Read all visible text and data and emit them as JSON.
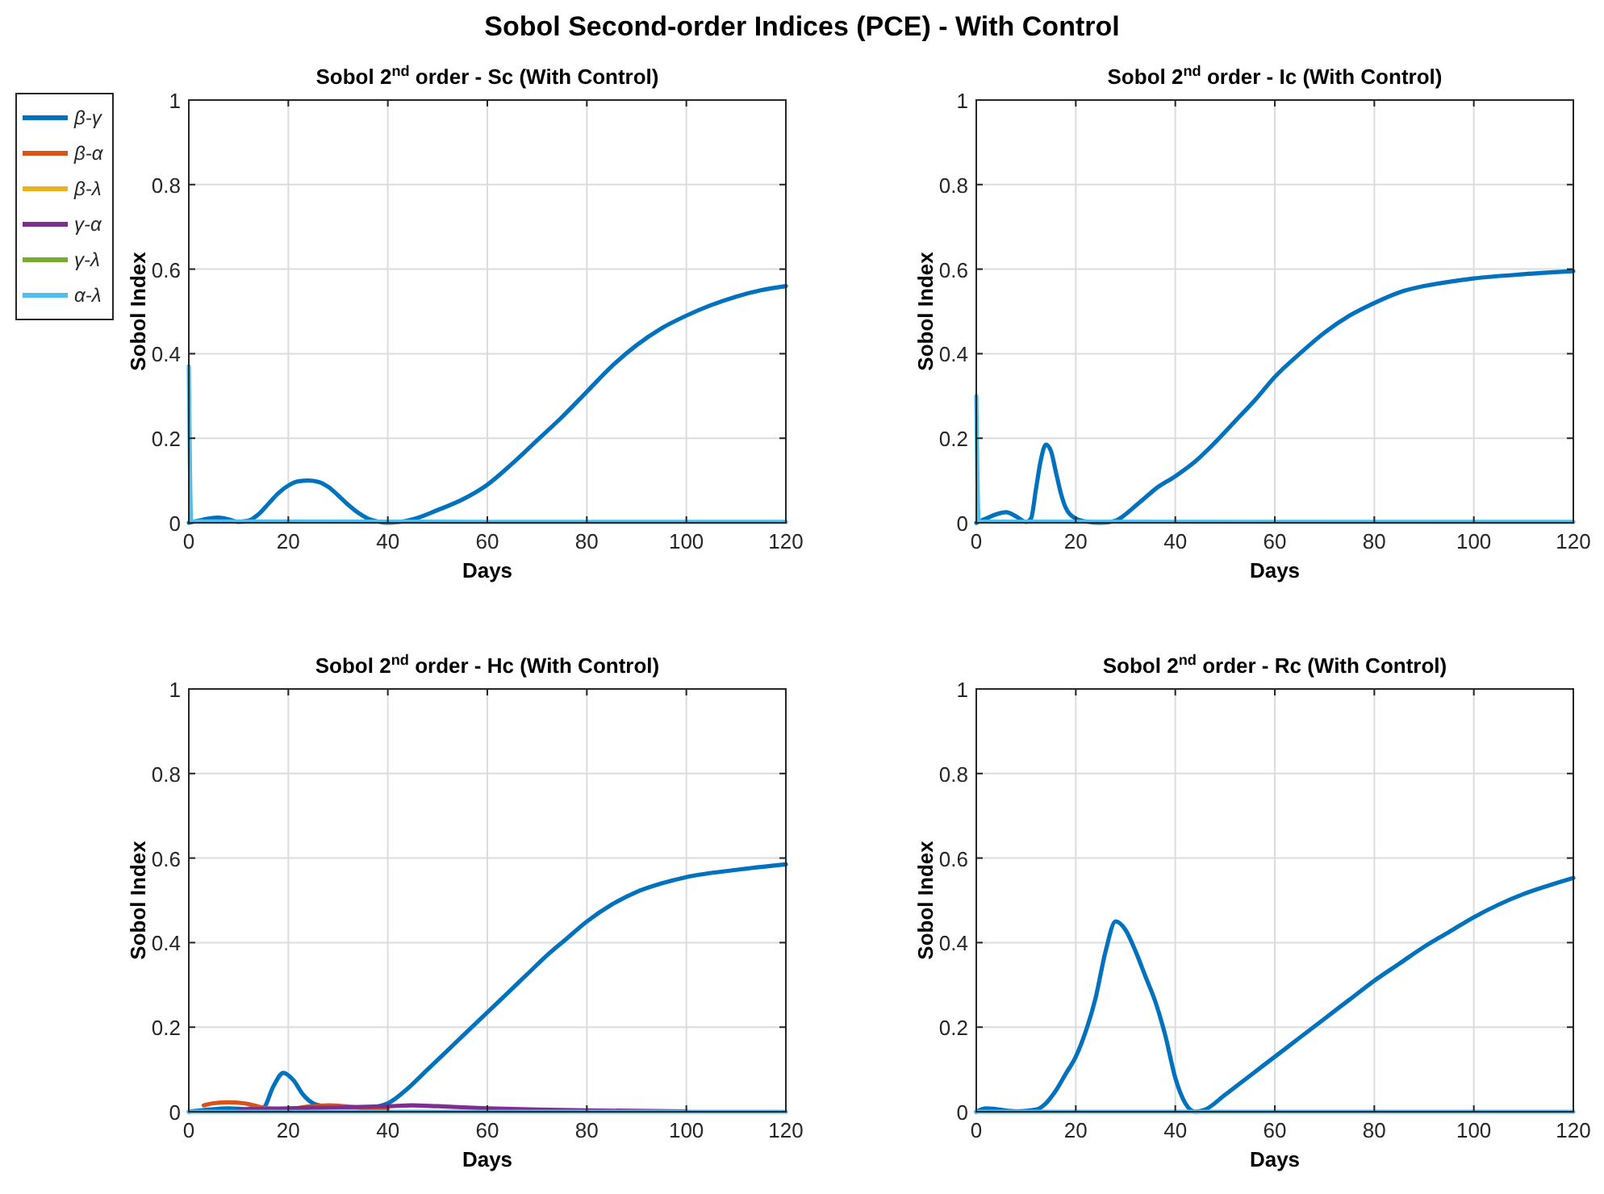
{
  "chart_data": [
    {
      "type": "other",
      "title": "Sobol Second-order Indices (PCE) - With Control"
    },
    {
      "type": "line",
      "title": "Sobol 2$^{nd}$ order - Sc (With Control)",
      "xlabel": "Days",
      "ylabel": "Sobol Index",
      "xlim": [
        0,
        120
      ],
      "ylim": [
        0,
        1
      ],
      "xticks": [
        0,
        20,
        40,
        60,
        80,
        100,
        120
      ],
      "yticks": [
        0,
        0.2,
        0.4,
        0.6,
        0.8,
        1
      ],
      "grid": true,
      "legend": "left",
      "series": [
        {
          "name": "β-γ",
          "color": "#0072bd",
          "x": [
            0,
            2,
            4,
            6,
            8,
            10,
            12,
            14,
            16,
            18,
            20,
            22,
            24,
            26,
            28,
            30,
            32,
            34,
            36,
            38,
            40,
            45,
            50,
            55,
            60,
            65,
            70,
            75,
            80,
            85,
            90,
            95,
            100,
            105,
            110,
            115,
            120
          ],
          "values": [
            0,
            0.005,
            0.01,
            0.012,
            0.008,
            0.002,
            0.005,
            0.02,
            0.045,
            0.07,
            0.088,
            0.098,
            0.1,
            0.097,
            0.085,
            0.065,
            0.043,
            0.024,
            0.01,
            0.003,
            0,
            0.008,
            0.03,
            0.055,
            0.09,
            0.14,
            0.195,
            0.25,
            0.31,
            0.37,
            0.42,
            0.46,
            0.49,
            0.515,
            0.535,
            0.55,
            0.56
          ]
        },
        {
          "name": "β-α",
          "color": "#d95319"
        },
        {
          "name": "β-λ",
          "color": "#edb120"
        },
        {
          "name": "γ-α",
          "color": "#7e2f8e"
        },
        {
          "name": "γ-λ",
          "color": "#77ac30"
        },
        {
          "name": "α-λ",
          "color": "#4dbeee",
          "x": [
            0,
            0.5,
            120
          ],
          "values": [
            0.37,
            0.003,
            0.002
          ]
        }
      ]
    },
    {
      "type": "line",
      "title": "Sobol 2$^{nd}$ order - Ic (With Control)",
      "xlabel": "Days",
      "ylabel": "Sobol Index",
      "xlim": [
        0,
        120
      ],
      "ylim": [
        0,
        1
      ],
      "xticks": [
        0,
        20,
        40,
        60,
        80,
        100,
        120
      ],
      "yticks": [
        0,
        0.2,
        0.4,
        0.6,
        0.8,
        1
      ],
      "grid": true,
      "series": [
        {
          "color": "#0072bd",
          "x": [
            0,
            2,
            4,
            6,
            8,
            10,
            11,
            12,
            13,
            14,
            15,
            16,
            17,
            18,
            20,
            22,
            25,
            28,
            30,
            32,
            34,
            36,
            40,
            44,
            48,
            52,
            56,
            60,
            65,
            70,
            75,
            80,
            85,
            90,
            95,
            100,
            110,
            120
          ],
          "values": [
            0,
            0.01,
            0.02,
            0.025,
            0.015,
            0.002,
            0.01,
            0.08,
            0.15,
            0.185,
            0.17,
            0.12,
            0.07,
            0.035,
            0.01,
            0.003,
            0,
            0.005,
            0.02,
            0.04,
            0.06,
            0.08,
            0.11,
            0.145,
            0.19,
            0.24,
            0.29,
            0.345,
            0.4,
            0.45,
            0.49,
            0.52,
            0.545,
            0.56,
            0.57,
            0.578,
            0.588,
            0.595
          ]
        },
        {
          "color": "#4dbeee",
          "x": [
            0,
            0.5,
            120
          ],
          "values": [
            0.3,
            0.003,
            0.002
          ]
        }
      ]
    },
    {
      "type": "line",
      "title": "Sobol 2$^{nd}$ order - Hc (With Control)",
      "xlabel": "Days",
      "ylabel": "Sobol Index",
      "xlim": [
        0,
        120
      ],
      "ylim": [
        0,
        1
      ],
      "xticks": [
        0,
        20,
        40,
        60,
        80,
        100,
        120
      ],
      "yticks": [
        0,
        0.2,
        0.4,
        0.6,
        0.8,
        1
      ],
      "grid": true,
      "series": [
        {
          "color": "#0072bd",
          "x": [
            0,
            4,
            8,
            12,
            15,
            17,
            19,
            21,
            23,
            25,
            28,
            32,
            36,
            40,
            44,
            48,
            52,
            56,
            60,
            64,
            68,
            72,
            76,
            80,
            85,
            90,
            95,
            100,
            110,
            120
          ],
          "values": [
            0,
            0.005,
            0.008,
            0.006,
            0.01,
            0.06,
            0.092,
            0.075,
            0.04,
            0.02,
            0.012,
            0.01,
            0.01,
            0.02,
            0.055,
            0.1,
            0.145,
            0.19,
            0.235,
            0.28,
            0.325,
            0.37,
            0.41,
            0.45,
            0.49,
            0.52,
            0.54,
            0.555,
            0.572,
            0.585
          ]
        },
        {
          "color": "#d95319",
          "x": [
            3,
            5,
            8,
            11,
            13,
            16,
            20,
            24,
            28,
            32,
            36,
            40
          ],
          "values": [
            0.015,
            0.02,
            0.022,
            0.02,
            0.015,
            0.008,
            0.006,
            0.012,
            0.015,
            0.012,
            0.008,
            0.006
          ]
        },
        {
          "color": "#7e2f8e",
          "x": [
            10,
            20,
            30,
            40,
            45,
            50,
            60,
            70,
            80,
            100
          ],
          "values": [
            0.005,
            0.008,
            0.01,
            0.013,
            0.015,
            0.013,
            0.008,
            0.005,
            0.003,
            0.001
          ]
        },
        {
          "color": "#4dbeee",
          "x": [
            0,
            120
          ],
          "values": [
            0,
            0
          ]
        }
      ]
    },
    {
      "type": "line",
      "title": "Sobol 2$^{nd}$ order - Rc (With Control)",
      "xlabel": "Days",
      "ylabel": "Sobol Index",
      "xlim": [
        0,
        120
      ],
      "ylim": [
        0,
        1
      ],
      "xticks": [
        0,
        20,
        40,
        60,
        80,
        100,
        120
      ],
      "yticks": [
        0,
        0.2,
        0.4,
        0.6,
        0.8,
        1
      ],
      "grid": true,
      "series": [
        {
          "color": "#0072bd",
          "x": [
            0,
            2,
            4,
            8,
            12,
            14,
            16,
            18,
            20,
            22,
            24,
            26,
            28,
            30,
            32,
            34,
            36,
            38,
            40,
            42,
            44,
            46,
            50,
            55,
            60,
            65,
            70,
            75,
            80,
            85,
            90,
            95,
            100,
            105,
            110,
            115,
            120
          ],
          "values": [
            0,
            0.008,
            0.006,
            0.001,
            0.005,
            0.02,
            0.05,
            0.09,
            0.13,
            0.19,
            0.27,
            0.38,
            0.45,
            0.43,
            0.38,
            0.32,
            0.26,
            0.18,
            0.08,
            0.02,
            0,
            0.005,
            0.04,
            0.085,
            0.13,
            0.175,
            0.22,
            0.265,
            0.31,
            0.35,
            0.39,
            0.425,
            0.46,
            0.49,
            0.515,
            0.535,
            0.553
          ]
        },
        {
          "color": "#4dbeee",
          "x": [
            0,
            120
          ],
          "values": [
            0,
            0
          ]
        }
      ]
    }
  ]
}
